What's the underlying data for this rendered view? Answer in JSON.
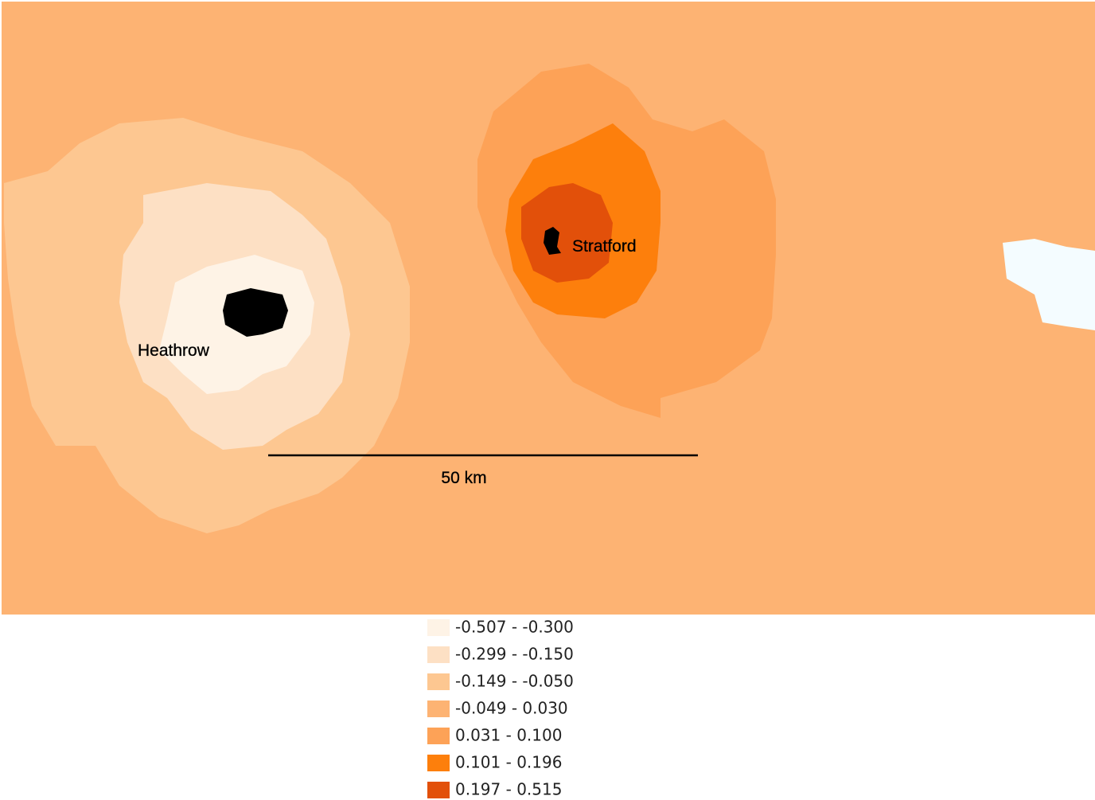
{
  "map": {
    "places": [
      {
        "label": "Heathrow"
      },
      {
        "label": "Stratford"
      }
    ],
    "scale_bar": {
      "label": "50 km"
    },
    "legend": [
      {
        "label": "-0.507 - -0.300",
        "color": "#fef3e6"
      },
      {
        "label": "-0.299 - -0.150",
        "color": "#fde0c4"
      },
      {
        "label": "-0.149 - -0.050",
        "color": "#fdc791"
      },
      {
        "label": "-0.049 - 0.030",
        "color": "#fdb373"
      },
      {
        "label": "0.031 - 0.100",
        "color": "#fda257"
      },
      {
        "label": "0.101 - 0.196",
        "color": "#fd7f0c"
      },
      {
        "label": "0.197 - 0.515",
        "color": "#e2500a"
      }
    ]
  }
}
